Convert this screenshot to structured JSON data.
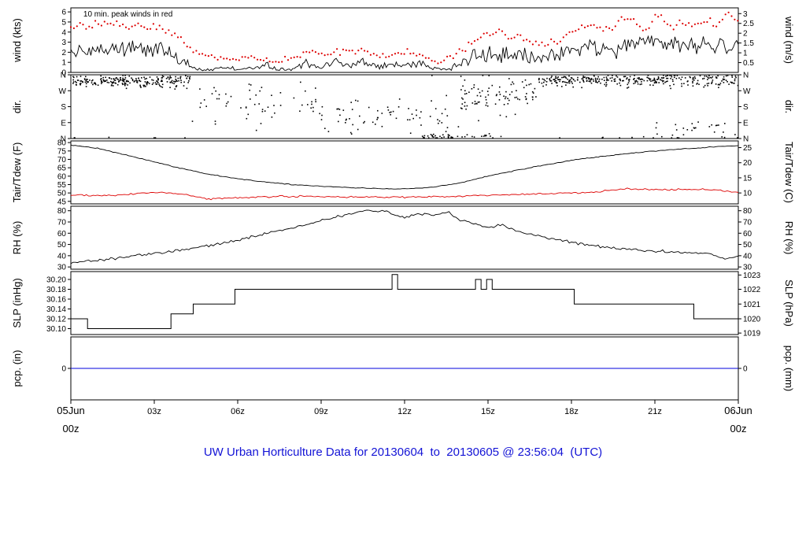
{
  "title": "UW Urban Horticulture Data for 20130604  to  20130605 @ 23:56:04  (UTC)",
  "annotation": "10 min. peak winds in red",
  "colors": {
    "title": "#1414d6",
    "red": "#dd0000",
    "black": "#000000",
    "precip_blue": "#0000dd",
    "frame": "#000000",
    "background": "#ffffff"
  },
  "x_axis": {
    "hours": 24,
    "ticks": [
      {
        "h": 3,
        "t": "03z"
      },
      {
        "h": 6,
        "t": "06z"
      },
      {
        "h": 9,
        "t": "09z"
      },
      {
        "h": 12,
        "t": "12z"
      },
      {
        "h": 15,
        "t": "15z"
      },
      {
        "h": 18,
        "t": "18z"
      },
      {
        "h": 21,
        "t": "21z"
      }
    ],
    "start_label": {
      "date": "05Jun",
      "time": "00z"
    },
    "end_label": {
      "date": "06Jun",
      "time": "00z"
    }
  },
  "chart_data": [
    {
      "name": "wind",
      "type": "line",
      "left_label": "wind (kts)",
      "right_label": "wind (m/s)",
      "ylim": [
        0,
        6.4
      ],
      "left_ticks": [
        {
          "v": 0,
          "t": "0"
        },
        {
          "v": 1,
          "t": "1"
        },
        {
          "v": 2,
          "t": "2"
        },
        {
          "v": 3,
          "t": "3"
        },
        {
          "v": 4,
          "t": "4"
        },
        {
          "v": 5,
          "t": "5"
        },
        {
          "v": 6,
          "t": "6"
        }
      ],
      "right_ticks": [
        {
          "v": 0.972,
          "t": "0.5"
        },
        {
          "v": 1.944,
          "t": "1"
        },
        {
          "v": 2.916,
          "t": "1.5"
        },
        {
          "v": 3.888,
          "t": "2"
        },
        {
          "v": 4.86,
          "t": "2.5"
        },
        {
          "v": 5.831,
          "t": "3"
        }
      ],
      "series": [
        {
          "name": "wind_speed_kts",
          "color": "#000000",
          "style": "line",
          "jitter": 0.85,
          "scale_jitter": true,
          "dt": 0.06,
          "x": [
            0,
            0.5,
            1,
            1.5,
            2,
            2.5,
            3,
            3.5,
            4,
            4.5,
            5,
            5.5,
            6,
            6.5,
            7,
            7.5,
            8,
            8.5,
            9,
            9.5,
            10,
            10.5,
            11,
            11.5,
            12,
            12.5,
            13,
            13.5,
            14,
            14.5,
            15,
            15.5,
            16,
            16.5,
            17,
            17.5,
            18,
            18.5,
            19,
            19.5,
            20,
            20.5,
            21,
            21.5,
            22,
            22.5,
            23,
            23.5,
            24
          ],
          "y": [
            2.2,
            2.0,
            2.3,
            2.5,
            2.4,
            2.6,
            2.3,
            2.0,
            1.2,
            0.4,
            0.3,
            0.6,
            0.3,
            0.4,
            0.7,
            0.3,
            0.4,
            0.9,
            0.4,
            1.0,
            0.6,
            1.2,
            0.5,
            0.9,
            0.7,
            1.2,
            0.4,
            0.3,
            0.8,
            1.8,
            1.6,
            1.9,
            1.7,
            1.4,
            1.2,
            1.6,
            2.2,
            2.5,
            2.3,
            2.6,
            2.4,
            2.7,
            2.9,
            2.6,
            2.8,
            2.5,
            2.7,
            2.6,
            2.9
          ]
        },
        {
          "name": "peak_wind_kts",
          "color": "#dd0000",
          "style": "dots",
          "jitter": 0.38,
          "scale_jitter": true,
          "dt": 0.11,
          "x": [
            0,
            0.3,
            0.6,
            0.9,
            1.2,
            1.5,
            1.8,
            2.1,
            2.4,
            2.7,
            3.0,
            3.3,
            3.6,
            4.0,
            4.3,
            5.5,
            6.5,
            7.2,
            8.4,
            9.5,
            10.4,
            11.5,
            12.0,
            12.6,
            13.2,
            14.0,
            14.5,
            15.0,
            15.4,
            15.8,
            16.2,
            16.6,
            17.0,
            17.5,
            18.0,
            18.4,
            18.8,
            19.2,
            19.6,
            20.0,
            20.4,
            20.8,
            21.2,
            21.6,
            22.0,
            22.4,
            22.8,
            23.2,
            23.6,
            24.0
          ],
          "y": [
            4.5,
            5.0,
            4.2,
            4.8,
            5.2,
            4.6,
            5.0,
            4.4,
            4.9,
            4.3,
            4.7,
            4.1,
            3.8,
            3.2,
            2.2,
            1.2,
            1.5,
            1.0,
            1.8,
            2.0,
            2.2,
            1.6,
            2.1,
            1.8,
            1.0,
            2.0,
            3.2,
            3.6,
            4.0,
            3.4,
            3.8,
            3.0,
            2.8,
            3.2,
            4.0,
            4.4,
            4.8,
            4.2,
            4.6,
            5.6,
            4.4,
            4.8,
            5.8,
            4.6,
            5.0,
            4.4,
            5.2,
            4.6,
            5.9,
            5.0
          ]
        }
      ]
    },
    {
      "name": "direction",
      "type": "scatter",
      "left_label": "dir.",
      "right_label": "dir.",
      "ylim": [
        0,
        360
      ],
      "left_ticks": [
        {
          "v": 360,
          "t": "N"
        },
        {
          "v": 270,
          "t": "W"
        },
        {
          "v": 180,
          "t": "S"
        },
        {
          "v": 90,
          "t": "E"
        },
        {
          "v": 0,
          "t": "N"
        }
      ],
      "right_ticks": [
        {
          "v": 360,
          "t": "N"
        },
        {
          "v": 270,
          "t": "W"
        },
        {
          "v": 180,
          "t": "S"
        },
        {
          "v": 90,
          "t": "E"
        },
        {
          "v": 0,
          "t": "N"
        }
      ],
      "clusters": [
        {
          "h0": 0,
          "h1": 4.3,
          "mean": 325,
          "spread": 35,
          "n": 230
        },
        {
          "h0": 4.3,
          "h1": 9.0,
          "mean": 200,
          "spread": 120,
          "n": 60
        },
        {
          "h0": 9.0,
          "h1": 14.0,
          "mean": 120,
          "spread": 100,
          "n": 70
        },
        {
          "h0": 12.5,
          "h1": 15.2,
          "mean": 10,
          "spread": 15,
          "n": 45
        },
        {
          "h0": 14.0,
          "h1": 16.8,
          "mean": 250,
          "spread": 110,
          "n": 90
        },
        {
          "h0": 16.8,
          "h1": 24.0,
          "mean": 330,
          "spread": 35,
          "n": 330
        },
        {
          "h0": 21.0,
          "h1": 24.0,
          "mean": 60,
          "spread": 50,
          "n": 25
        }
      ]
    },
    {
      "name": "temperature",
      "type": "line",
      "left_label": "Tair/Tdew (F)",
      "right_label": "Tair/Tdew (C)",
      "ylim": [
        43.5,
        81
      ],
      "left_ticks": [
        {
          "v": 45,
          "t": "45"
        },
        {
          "v": 50,
          "t": "50"
        },
        {
          "v": 55,
          "t": "55"
        },
        {
          "v": 60,
          "t": "60"
        },
        {
          "v": 65,
          "t": "65"
        },
        {
          "v": 70,
          "t": "70"
        },
        {
          "v": 75,
          "t": "75"
        },
        {
          "v": 80,
          "t": "80"
        }
      ],
      "right_ticks": [
        {
          "v": 50,
          "t": "10"
        },
        {
          "v": 59,
          "t": "15"
        },
        {
          "v": 68,
          "t": "20"
        },
        {
          "v": 77,
          "t": "25"
        }
      ],
      "series": [
        {
          "name": "Tair_F",
          "color": "#000000",
          "style": "line",
          "jitter": 0.25,
          "dt": 0.08,
          "x": [
            0,
            1,
            2,
            3,
            4,
            5,
            6,
            7,
            8,
            9,
            10,
            11,
            12,
            13,
            14,
            15,
            16,
            17,
            18,
            19,
            20,
            21,
            22,
            23,
            24
          ],
          "y": [
            78.5,
            76.5,
            72.5,
            68.5,
            64.5,
            61,
            58.5,
            56.5,
            55,
            54,
            53.2,
            52.6,
            52.4,
            53.5,
            56,
            60,
            63.5,
            66.5,
            69.5,
            71.5,
            73.5,
            75,
            76.2,
            77.3,
            78.3
          ]
        },
        {
          "name": "Tdew_F",
          "color": "#dd0000",
          "style": "line",
          "jitter": 0.55,
          "dt": 0.08,
          "x": [
            0,
            1,
            2,
            3,
            4,
            5,
            6,
            7,
            8,
            9,
            10,
            11,
            12,
            13,
            14,
            15,
            16,
            17,
            18,
            19,
            20,
            21,
            22,
            23,
            24
          ],
          "y": [
            49,
            48.5,
            49,
            50.5,
            49.5,
            46.5,
            47,
            47.8,
            48,
            48,
            47.6,
            47.5,
            47.5,
            47.8,
            48.2,
            48.6,
            49,
            49.5,
            50,
            50.8,
            52.5,
            52,
            52,
            52,
            50.5
          ]
        }
      ]
    },
    {
      "name": "relative_humidity",
      "type": "line",
      "left_label": "RH (%)",
      "right_label": "RH (%)",
      "ylim": [
        28,
        84
      ],
      "left_ticks": [
        {
          "v": 30,
          "t": "30"
        },
        {
          "v": 40,
          "t": "40"
        },
        {
          "v": 50,
          "t": "50"
        },
        {
          "v": 60,
          "t": "60"
        },
        {
          "v": 70,
          "t": "70"
        },
        {
          "v": 80,
          "t": "80"
        }
      ],
      "right_ticks": [
        {
          "v": 30,
          "t": "30"
        },
        {
          "v": 40,
          "t": "40"
        },
        {
          "v": 50,
          "t": "50"
        },
        {
          "v": 60,
          "t": "60"
        },
        {
          "v": 70,
          "t": "70"
        },
        {
          "v": 80,
          "t": "80"
        }
      ],
      "series": [
        {
          "name": "RH_pct",
          "color": "#000000",
          "style": "line",
          "jitter": 1.2,
          "dt": 0.08,
          "x": [
            0,
            1,
            2,
            3,
            4,
            5,
            6,
            7,
            8,
            9,
            10,
            10.7,
            11.3,
            12,
            12.5,
            13,
            13.6,
            14,
            15,
            15.5,
            16,
            17,
            18,
            19,
            20,
            21,
            22,
            23,
            23.5,
            24
          ],
          "y": [
            34,
            36,
            39,
            42,
            45,
            49,
            54,
            60,
            65,
            71,
            77,
            81,
            79,
            74,
            77,
            76,
            79,
            72,
            65,
            68,
            62,
            56,
            52,
            48,
            46,
            44,
            43,
            42,
            37,
            40
          ]
        }
      ]
    },
    {
      "name": "sea_level_pressure",
      "type": "line",
      "left_label": "SLP (inHg)",
      "right_label": "SLP (hPa)",
      "ylim": [
        30.088,
        30.216
      ],
      "left_ticks": [
        {
          "v": 30.1,
          "t": "30.10"
        },
        {
          "v": 30.12,
          "t": "30.12"
        },
        {
          "v": 30.14,
          "t": "30.14"
        },
        {
          "v": 30.16,
          "t": "30.16"
        },
        {
          "v": 30.18,
          "t": "30.18"
        },
        {
          "v": 30.2,
          "t": "30.20"
        }
      ],
      "right_ticks": [
        {
          "v": 30.091,
          "t": "1019"
        },
        {
          "v": 30.12,
          "t": "1020"
        },
        {
          "v": 30.15,
          "t": "1021"
        },
        {
          "v": 30.18,
          "t": "1022"
        },
        {
          "v": 30.209,
          "t": "1023"
        }
      ],
      "series": [
        {
          "name": "slp_inHg",
          "color": "#000000",
          "style": "steps",
          "x": [
            0,
            0.6,
            3.6,
            4.4,
            5.9,
            11.55,
            11.75,
            14.55,
            14.75,
            14.95,
            15.15,
            18.1,
            22.4,
            24
          ],
          "y": [
            30.12,
            30.1,
            30.13,
            30.15,
            30.18,
            30.21,
            30.18,
            30.2,
            30.18,
            30.2,
            30.18,
            30.15,
            30.12,
            30.12
          ]
        }
      ]
    },
    {
      "name": "precipitation",
      "type": "line",
      "left_label": "pcp. (in)",
      "right_label": "pcp. (mm)",
      "ylim": [
        -1,
        1
      ],
      "left_ticks": [
        {
          "v": 0,
          "t": "0"
        }
      ],
      "right_ticks": [
        {
          "v": 0,
          "t": "0"
        }
      ],
      "series": [
        {
          "name": "pcp_in",
          "color": "#0000dd",
          "style": "line",
          "jitter": 0,
          "dt": 2,
          "x": [
            0,
            24
          ],
          "y": [
            0,
            0
          ]
        }
      ]
    }
  ]
}
